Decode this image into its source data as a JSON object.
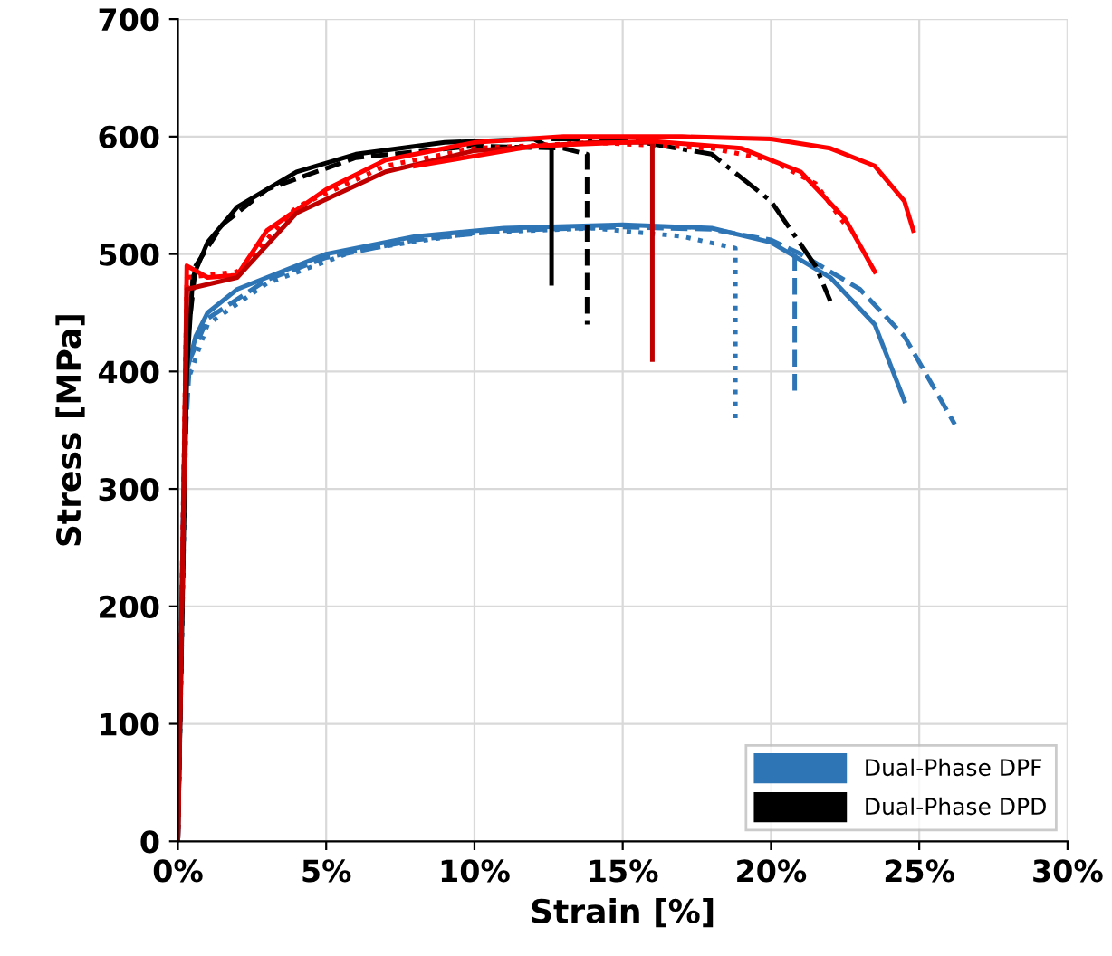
{
  "chart_data": {
    "type": "line",
    "xlabel": "Strain [%]",
    "ylabel": "Stress [MPa]",
    "xlim": [
      0,
      30
    ],
    "ylim": [
      0,
      700
    ],
    "xticks": [
      {
        "value": 0,
        "label": "0%"
      },
      {
        "value": 5,
        "label": "5%"
      },
      {
        "value": 10,
        "label": "10%"
      },
      {
        "value": 15,
        "label": "15%"
      },
      {
        "value": 20,
        "label": "20%"
      },
      {
        "value": 25,
        "label": "25%"
      },
      {
        "value": 30,
        "label": "30%"
      }
    ],
    "yticks": [
      0,
      100,
      200,
      300,
      400,
      500,
      600,
      700
    ],
    "grid": true,
    "legend": "bottom right",
    "marker": "none",
    "series": [
      {
        "name": "Dual-Phase DPF",
        "color": "#2e75b6",
        "line_style": "solid",
        "x": [
          0,
          0.2,
          0.3,
          0.6,
          1,
          2,
          3,
          5,
          8,
          11,
          15,
          18,
          20,
          22,
          23.5,
          24.5
        ],
        "values": [
          0,
          300,
          400,
          430,
          450,
          470,
          480,
          500,
          515,
          522,
          525,
          522,
          510,
          480,
          440,
          375
        ]
      },
      {
        "color": "#2e75b6",
        "line_style": "dashed",
        "x": [
          0,
          0.2,
          0.4,
          1,
          3,
          5,
          8,
          11,
          15,
          18,
          20,
          21,
          23,
          24.5,
          26.2
        ],
        "values": [
          0,
          320,
          410,
          445,
          478,
          497,
          512,
          520,
          523,
          521,
          512,
          500,
          470,
          430,
          355
        ]
      },
      {
        "color": "#2e75b6",
        "line_style": "dotted",
        "x": [
          0,
          0.3,
          1,
          3,
          6,
          10,
          14,
          17,
          18.8,
          18.8
        ],
        "values": [
          0,
          390,
          440,
          475,
          503,
          518,
          522,
          515,
          505,
          360
        ]
      },
      {
        "color": "#2e75b6",
        "line_style": "dashed",
        "x": [
          20.8,
          20.8
        ],
        "values": [
          500,
          380
        ]
      },
      {
        "name": "Dual-Phase DPD",
        "color": "#000000",
        "line_style": "solid",
        "x": [
          0,
          0.3,
          0.5,
          1,
          2,
          4,
          6,
          9,
          12,
          12.6,
          12.6
        ],
        "values": [
          0,
          400,
          480,
          510,
          540,
          570,
          585,
          595,
          598,
          590,
          475
        ]
      },
      {
        "color": "#000000",
        "line_style": "dashed",
        "x": [
          0,
          0.3,
          0.6,
          1.5,
          3,
          6,
          10,
          13,
          13.8,
          13.8
        ],
        "values": [
          0,
          420,
          490,
          525,
          555,
          582,
          592,
          590,
          585,
          440
        ]
      },
      {
        "color": "#000000",
        "line_style": "dashdot",
        "x": [
          12.6,
          15,
          18,
          20,
          21.5,
          22
        ],
        "values": [
          598,
          598,
          585,
          545,
          490,
          460
        ]
      },
      {
        "color": "#ff0000",
        "line_style": "solid",
        "x": [
          0,
          0.2,
          0.3,
          1,
          2,
          3,
          5,
          7,
          10,
          13,
          17,
          20,
          22,
          23.5,
          24.5,
          24.8
        ],
        "values": [
          0,
          300,
          490,
          480,
          482,
          520,
          555,
          580,
          595,
          600,
          600,
          598,
          590,
          575,
          545,
          520
        ]
      },
      {
        "color": "#ff0000",
        "line_style": "dotted",
        "x": [
          0,
          0.3,
          2,
          4,
          7,
          10,
          14,
          18,
          20,
          21.5,
          22.5
        ],
        "values": [
          0,
          480,
          485,
          540,
          575,
          590,
          595,
          590,
          580,
          560,
          525
        ]
      },
      {
        "color": "#c00000",
        "line_style": "solid",
        "x": [
          0,
          0.3,
          2,
          4,
          7,
          10,
          14,
          16,
          16
        ],
        "values": [
          0,
          470,
          480,
          535,
          570,
          588,
          595,
          595,
          410
        ]
      },
      {
        "color": "#ff0000",
        "line_style": "solid",
        "x": [
          8,
          12,
          16,
          19,
          21,
          22.5,
          23.5
        ],
        "values": [
          575,
          592,
          596,
          590,
          570,
          530,
          485
        ]
      }
    ]
  }
}
